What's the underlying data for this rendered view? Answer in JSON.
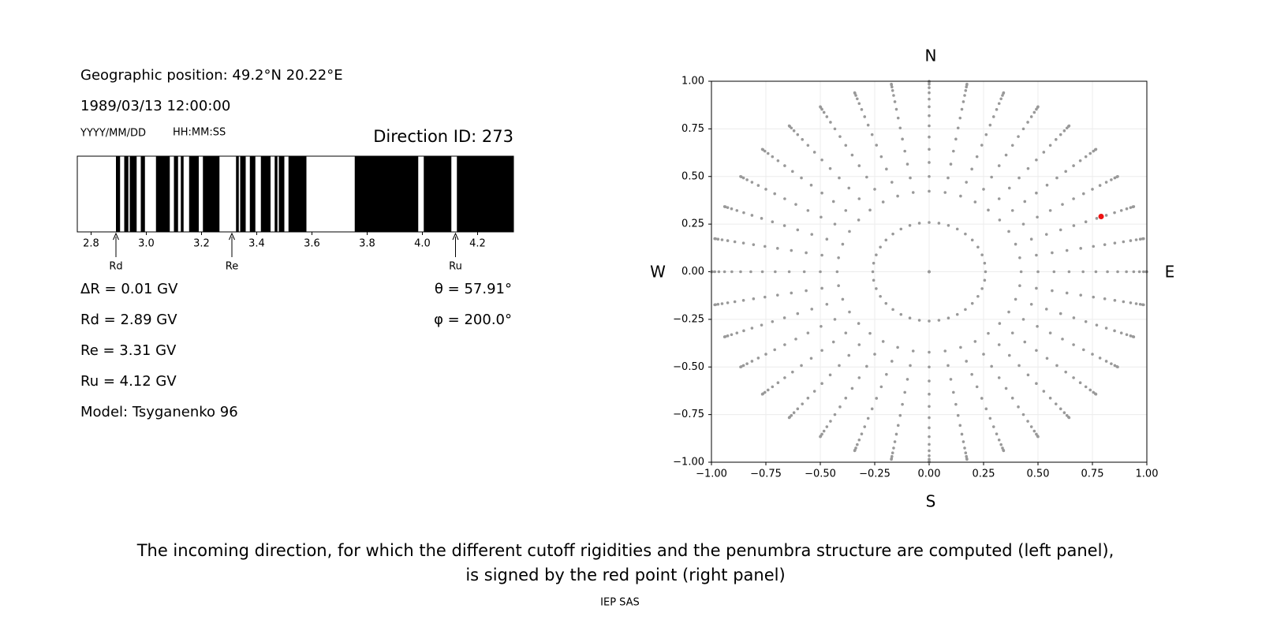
{
  "chart_data": [
    {
      "type": "penumbra",
      "geographic_position": "Geographic position: 49.2°N 20.22°E",
      "datetime": "1989/03/13 12:00:00",
      "date_format": "YYYY/MM/DD",
      "time_format": "HH:MM:SS",
      "direction_id": "Direction ID: 273",
      "xlim": [
        2.75,
        4.33
      ],
      "xticks": [
        2.8,
        3.0,
        3.2,
        3.4,
        3.6,
        3.8,
        4.0,
        4.2
      ],
      "xtick_labels": [
        "2.8",
        "3.0",
        "3.2",
        "3.4",
        "3.6",
        "3.8",
        "4.0",
        "4.2"
      ],
      "forbidden_intervals": [
        [
          2.89,
          2.905
        ],
        [
          2.92,
          2.935
        ],
        [
          2.94,
          2.965
        ],
        [
          2.98,
          2.995
        ],
        [
          3.035,
          3.085
        ],
        [
          3.1,
          3.115
        ],
        [
          3.125,
          3.135
        ],
        [
          3.155,
          3.19
        ],
        [
          3.205,
          3.265
        ],
        [
          3.325,
          3.335
        ],
        [
          3.34,
          3.36
        ],
        [
          3.375,
          3.395
        ],
        [
          3.415,
          3.45
        ],
        [
          3.465,
          3.475
        ],
        [
          3.48,
          3.5
        ],
        [
          3.515,
          3.58
        ],
        [
          3.755,
          3.985
        ],
        [
          4.005,
          4.105
        ],
        [
          4.125,
          4.33
        ]
      ],
      "color": "#000000",
      "markers": [
        {
          "label": "Rd",
          "value": 2.89
        },
        {
          "label": "Re",
          "value": 3.31
        },
        {
          "label": "Ru",
          "value": 4.12
        }
      ],
      "stats_left": [
        "ΔR = 0.01 GV",
        "Rd = 2.89 GV",
        "Re = 3.31 GV",
        "Ru = 4.12 GV",
        "Model: Tsyganenko 96"
      ],
      "stats_right": [
        "θ = 57.91°",
        "φ = 200.0°"
      ]
    },
    {
      "type": "sky",
      "north": "N",
      "south": "S",
      "east": "E",
      "west": "W",
      "xlim": [
        -1,
        1
      ],
      "ylim": [
        -1,
        1
      ],
      "xticks": [
        {
          "value": -1,
          "label": "−1.00"
        },
        {
          "value": -0.75,
          "label": "−0.75"
        },
        {
          "value": -0.5,
          "label": "−0.50"
        },
        {
          "value": -0.25,
          "label": "−0.25"
        },
        {
          "value": 0,
          "label": "0.00"
        },
        {
          "value": 0.25,
          "label": "0.25"
        },
        {
          "value": 0.5,
          "label": "0.50"
        },
        {
          "value": 0.75,
          "label": "0.75"
        },
        {
          "value": 1,
          "label": "1.00"
        }
      ],
      "yticks": [
        {
          "value": -1,
          "label": "−1.00"
        },
        {
          "value": -0.75,
          "label": "−0.75"
        },
        {
          "value": -0.5,
          "label": "−0.50"
        },
        {
          "value": -0.25,
          "label": "−0.25"
        },
        {
          "value": 0,
          "label": "0.00"
        },
        {
          "value": 0.25,
          "label": "0.25"
        },
        {
          "value": 0.5,
          "label": "0.50"
        },
        {
          "value": 0.75,
          "label": "0.75"
        },
        {
          "value": 1,
          "label": "1.00"
        }
      ],
      "grid": true,
      "sky_grid": {
        "color": "#999999",
        "zenith_deg": [
          0,
          15,
          25,
          30,
          35,
          40,
          45,
          50,
          55,
          60,
          65,
          70,
          75,
          80,
          85,
          90
        ],
        "azimuth_deg": [
          0,
          10,
          20,
          30,
          40,
          50,
          60,
          70,
          80,
          90,
          100,
          110,
          120,
          130,
          140,
          150,
          160,
          170,
          180,
          190,
          200,
          210,
          220,
          230,
          240,
          250,
          260,
          270,
          280,
          290,
          300,
          310,
          320,
          330,
          340,
          350
        ]
      },
      "selected": {
        "x": 0.79,
        "y": 0.29,
        "color": "#ee1111"
      }
    }
  ],
  "caption": [
    "The incoming direction, for which the different cutoff rigidities and the penumbra structure are computed (left panel),",
    "is signed by the red point (right panel)"
  ],
  "footer": "IEP SAS"
}
